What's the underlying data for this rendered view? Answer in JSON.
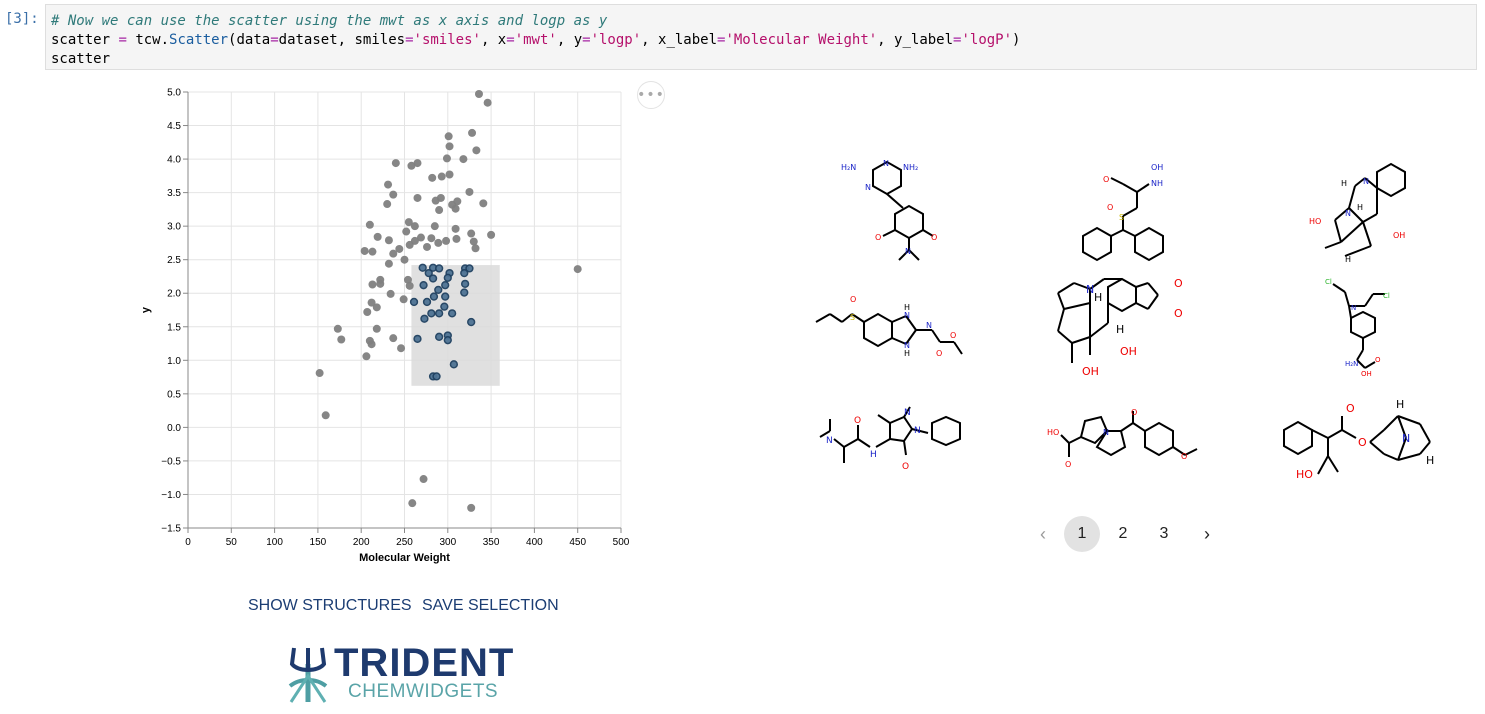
{
  "cell": {
    "prompt": "[3]:",
    "line1": "# Now we can use the scatter using the mwt as x axis and logp as y",
    "line2_var": "scatter",
    "line2_eq": " = ",
    "line2_mod": "tcw.",
    "line2_cls": "Scatter",
    "line2_a": "(data",
    "line2_b": "dataset, smiles",
    "line2_s1": "'smiles'",
    "line2_c": ", x",
    "line2_s2": "'mwt'",
    "line2_d": ", y",
    "line2_s3": "'logp'",
    "line2_e": ", x_label",
    "line2_s4": "'Molecular Weight'",
    "line2_f": ", y_label",
    "line2_s5": "'logP'",
    "line2_g": ")",
    "line3": "scatter"
  },
  "toolbar": {
    "ellipsis": "•••"
  },
  "actions": {
    "show_structures": "SHOW STRUCTURES",
    "save_selection": "SAVE SELECTION"
  },
  "logo": {
    "word1": "TRIDENT",
    "word2": "CHEMWIDGETS"
  },
  "pagination": {
    "prev": "‹",
    "pages": [
      "1",
      "2",
      "3"
    ],
    "active": "1",
    "next": "›"
  },
  "molecules": {
    "m1": {
      "labels": [
        "H₂N",
        "NH₂",
        "N",
        "N",
        "O",
        "O",
        "N"
      ]
    },
    "m2": {
      "labels": [
        "OH",
        "NH",
        "O",
        "S",
        "O"
      ]
    },
    "m3": {
      "labels": [
        "N",
        "H",
        "HO",
        "N",
        "H",
        "OH",
        "H"
      ]
    },
    "m4": {
      "labels": [
        "O",
        "S",
        "H",
        "N",
        "N",
        "N",
        "H",
        "O",
        "O"
      ]
    },
    "m5": {
      "labels": [
        "N",
        "H",
        "O",
        "O",
        "H",
        "OH",
        "OH"
      ]
    },
    "m6": {
      "labels": [
        "Cl",
        "N",
        "Cl",
        "H₂N",
        "O",
        "OH"
      ]
    },
    "m7": {
      "labels": [
        "N",
        "O",
        "N",
        "N",
        "H",
        "O"
      ]
    },
    "m8": {
      "labels": [
        "HO",
        "O",
        "N",
        "O",
        "O"
      ]
    },
    "m9": {
      "labels": [
        "H",
        "O",
        "O",
        "N",
        "H",
        "HO"
      ]
    }
  },
  "chart_data": {
    "type": "scatter",
    "xlabel": "Molecular Weight",
    "ylabel": "y",
    "xlim": [
      0,
      500
    ],
    "ylim": [
      -1.5,
      5.0
    ],
    "xticks": [
      0,
      50,
      100,
      150,
      200,
      250,
      300,
      350,
      400,
      450,
      500
    ],
    "yticks": [
      -1.5,
      -1.0,
      -0.5,
      0.0,
      0.5,
      1.0,
      1.5,
      2.0,
      2.5,
      3.0,
      3.5,
      4.0,
      4.5,
      5.0
    ],
    "ytick_labels": [
      "−1.5",
      "−1.0",
      "−0.5",
      "0.0",
      "0.5",
      "1.0",
      "1.5",
      "2.0",
      "2.5",
      "3.0",
      "3.5",
      "4.0",
      "4.5",
      "5.0"
    ],
    "grid": true,
    "colors": {
      "point": "#7f7f7f",
      "selected": "#4e7394",
      "selected_edge": "#1f4060",
      "brush": "#dadada",
      "grid": "#e4e4e4"
    },
    "selection": {
      "x": [
        258,
        360
      ],
      "y": [
        0.62,
        2.42
      ]
    },
    "points": [
      [
        336,
        4.97
      ],
      [
        346,
        4.84
      ],
      [
        328,
        4.39
      ],
      [
        301,
        4.34
      ],
      [
        302,
        4.19
      ],
      [
        333,
        4.13
      ],
      [
        299,
        4.01
      ],
      [
        318,
        4.0
      ],
      [
        240,
        3.94
      ],
      [
        265,
        3.94
      ],
      [
        258,
        3.9
      ],
      [
        302,
        3.77
      ],
      [
        293,
        3.74
      ],
      [
        282,
        3.72
      ],
      [
        231,
        3.62
      ],
      [
        325,
        3.51
      ],
      [
        237,
        3.47
      ],
      [
        265,
        3.42
      ],
      [
        292,
        3.42
      ],
      [
        286,
        3.38
      ],
      [
        311,
        3.37
      ],
      [
        341,
        3.34
      ],
      [
        230,
        3.33
      ],
      [
        305,
        3.32
      ],
      [
        309,
        3.26
      ],
      [
        290,
        3.24
      ],
      [
        255,
        3.06
      ],
      [
        210,
        3.02
      ],
      [
        262,
        3.0
      ],
      [
        285,
        3.0
      ],
      [
        309,
        2.96
      ],
      [
        252,
        2.92
      ],
      [
        327,
        2.89
      ],
      [
        350,
        2.87
      ],
      [
        219,
        2.84
      ],
      [
        269,
        2.83
      ],
      [
        281,
        2.82
      ],
      [
        310,
        2.81
      ],
      [
        232,
        2.79
      ],
      [
        262,
        2.78
      ],
      [
        298,
        2.78
      ],
      [
        289,
        2.75
      ],
      [
        330,
        2.77
      ],
      [
        256,
        2.72
      ],
      [
        276,
        2.69
      ],
      [
        244,
        2.66
      ],
      [
        204,
        2.63
      ],
      [
        213,
        2.62
      ],
      [
        237,
        2.59
      ],
      [
        332,
        2.67
      ],
      [
        250,
        2.5
      ],
      [
        232,
        2.44
      ],
      [
        222,
        2.2
      ],
      [
        450,
        2.36
      ],
      [
        254,
        2.2
      ],
      [
        222,
        2.14
      ],
      [
        213,
        2.13
      ],
      [
        256,
        2.11
      ],
      [
        234,
        1.99
      ],
      [
        249,
        1.91
      ],
      [
        212,
        1.86
      ],
      [
        218,
        1.79
      ],
      [
        207,
        1.72
      ],
      [
        173,
        1.47
      ],
      [
        218,
        1.47
      ],
      [
        237,
        1.33
      ],
      [
        210,
        1.29
      ],
      [
        177,
        1.31
      ],
      [
        212,
        1.24
      ],
      [
        206,
        1.06
      ],
      [
        246,
        1.18
      ],
      [
        152,
        0.81
      ],
      [
        159,
        0.18
      ],
      [
        272,
        -0.77
      ],
      [
        259,
        -1.13
      ],
      [
        327,
        -1.2
      ]
    ],
    "selected_points": [
      [
        271,
        2.38
      ],
      [
        283,
        2.38
      ],
      [
        290,
        2.37
      ],
      [
        278,
        2.3
      ],
      [
        302,
        2.3
      ],
      [
        320,
        2.37
      ],
      [
        325,
        2.37
      ],
      [
        283,
        2.22
      ],
      [
        300,
        2.23
      ],
      [
        319,
        2.3
      ],
      [
        297,
        2.12
      ],
      [
        320,
        2.14
      ],
      [
        272,
        2.12
      ],
      [
        289,
        2.05
      ],
      [
        261,
        1.87
      ],
      [
        284,
        1.95
      ],
      [
        297,
        1.95
      ],
      [
        319,
        2.01
      ],
      [
        276,
        1.87
      ],
      [
        296,
        1.8
      ],
      [
        281,
        1.7
      ],
      [
        273,
        1.62
      ],
      [
        305,
        1.7
      ],
      [
        290,
        1.7
      ],
      [
        327,
        1.57
      ],
      [
        290,
        1.35
      ],
      [
        265,
        1.32
      ],
      [
        300,
        1.37
      ],
      [
        300,
        1.3
      ],
      [
        307,
        0.94
      ],
      [
        283,
        0.76
      ],
      [
        287,
        0.76
      ]
    ]
  }
}
